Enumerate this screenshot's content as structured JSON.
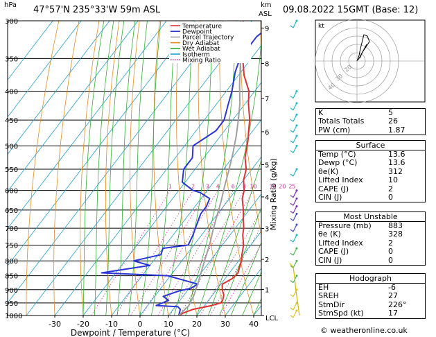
{
  "header": {
    "hpa_label": "hPa",
    "location": "47°57'N  235°33'W  59m  ASL",
    "km_label": "km",
    "asl_label": "ASL",
    "date": "09.08.2022  15GMT  (Base: 12)"
  },
  "footer": {
    "credit": "© weatheronline.co.uk"
  },
  "hodograph": {
    "label": "kt",
    "ring_labels": [
      "40",
      "30",
      "20"
    ]
  },
  "table": {
    "top": [
      {
        "label": "K",
        "value": "5"
      },
      {
        "label": "Totals Totals",
        "value": "26"
      },
      {
        "label": "PW (cm)",
        "value": "1.87"
      }
    ],
    "surface": {
      "title": "Surface",
      "rows": [
        {
          "label": "Temp (°C)",
          "value": "13.6"
        },
        {
          "label": "Dewp (°C)",
          "value": "13.6"
        },
        {
          "label": "θe(K)",
          "value": "312"
        },
        {
          "label": "Lifted Index",
          "value": "10"
        },
        {
          "label": "CAPE (J)",
          "value": "2"
        },
        {
          "label": "CIN (J)",
          "value": "0"
        }
      ]
    },
    "most_unstable": {
      "title": "Most Unstable",
      "rows": [
        {
          "label": "Pressure (mb)",
          "value": "883"
        },
        {
          "label": "θe (K)",
          "value": "328"
        },
        {
          "label": "Lifted Index",
          "value": "2"
        },
        {
          "label": "CAPE (J)",
          "value": "0"
        },
        {
          "label": "CIN (J)",
          "value": "0"
        }
      ]
    },
    "hodograph": {
      "title": "Hodograph",
      "rows": [
        {
          "label": "EH",
          "value": "-6"
        },
        {
          "label": "SREH",
          "value": "27"
        },
        {
          "label": "StmDir",
          "value": "226°"
        },
        {
          "label": "StmSpd (kt)",
          "value": "17"
        }
      ]
    }
  },
  "chart_data": {
    "type": "line",
    "subtype": "skew-T log-P sounding",
    "xlabel": "Dewpoint / Temperature (°C)",
    "ylabel_left": "hPa",
    "ylabel_right": "Mixing Ratio (g/kg)",
    "x_ticks": [
      "-30",
      "-20",
      "-10",
      "0",
      "10",
      "20",
      "30",
      "40"
    ],
    "x_values": [
      -30,
      -20,
      -10,
      0,
      10,
      20,
      30,
      40
    ],
    "p_ticks": [
      300,
      350,
      400,
      450,
      500,
      550,
      600,
      650,
      700,
      750,
      800,
      850,
      900,
      950,
      1000
    ],
    "p_labels": [
      "300",
      "350",
      "400",
      "450",
      "500",
      "550",
      "600",
      "650",
      "700",
      "750",
      "800",
      "850",
      "900",
      "950",
      "1000"
    ],
    "km_ticks": [
      {
        "km": "9",
        "p": 309
      },
      {
        "km": "8",
        "p": 357
      },
      {
        "km": "7",
        "p": 412
      },
      {
        "km": "6",
        "p": 472
      },
      {
        "km": "5",
        "p": 540
      },
      {
        "km": "4",
        "p": 616
      },
      {
        "km": "3",
        "p": 701
      },
      {
        "km": "2",
        "p": 795
      },
      {
        "km": "1",
        "p": 899
      }
    ],
    "lcl_label": "LCL",
    "mixing_ratio_labels": [
      "1",
      "2",
      "3",
      "4",
      "6",
      "8",
      "10",
      "16",
      "20",
      "25"
    ],
    "mixing_ratio_values": [
      1,
      2,
      3,
      4,
      6,
      8,
      10,
      16,
      20,
      25
    ],
    "legend": [
      {
        "name": "Temperature",
        "color": "#e03030"
      },
      {
        "name": "Dewpoint",
        "color": "#2a35d8"
      },
      {
        "name": "Parcel Trajectory",
        "color": "#a0a0a0"
      },
      {
        "name": "Dry Adiabat",
        "color": "#e88a1a"
      },
      {
        "name": "Wet Adiabat",
        "color": "#2bb32b"
      },
      {
        "name": "Isotherm",
        "color": "#1fa0d0"
      },
      {
        "name": "Mixing Ratio",
        "color": "#d0309a"
      }
    ],
    "series": [
      {
        "name": "Temperature",
        "points": [
          [
            13.6,
            1000
          ],
          [
            14.5,
            990
          ],
          [
            17,
            975
          ],
          [
            22.5,
            960
          ],
          [
            25,
            950
          ],
          [
            25,
            940
          ],
          [
            24,
            920
          ],
          [
            22,
            900
          ],
          [
            20.5,
            880
          ],
          [
            22.5,
            860
          ],
          [
            23,
            840
          ],
          [
            22,
            820
          ],
          [
            21,
            800
          ],
          [
            19.5,
            780
          ],
          [
            17.5,
            750
          ],
          [
            14.5,
            720
          ],
          [
            13,
            700
          ],
          [
            10,
            670
          ],
          [
            8,
            650
          ],
          [
            4.5,
            620
          ],
          [
            3,
            600
          ],
          [
            0,
            575
          ],
          [
            -2,
            550
          ],
          [
            -5.5,
            525
          ],
          [
            -8,
            500
          ],
          [
            -9,
            490
          ],
          [
            -11.5,
            470
          ],
          [
            -14,
            450
          ],
          [
            -19,
            420
          ],
          [
            -22,
            400
          ],
          [
            -28,
            375
          ],
          [
            -33,
            350
          ],
          [
            -37,
            330
          ],
          [
            -41,
            310
          ],
          [
            -43,
            300
          ]
        ]
      },
      {
        "name": "Dewpoint",
        "points": [
          [
            13.6,
            1000
          ],
          [
            13.2,
            990
          ],
          [
            12.5,
            975
          ],
          [
            11,
            965
          ],
          [
            3,
            960
          ],
          [
            6,
            940
          ],
          [
            3,
            925
          ],
          [
            7,
            905
          ],
          [
            10.5,
            895
          ],
          [
            12,
            880
          ],
          [
            -1,
            850
          ],
          [
            -25,
            840
          ],
          [
            -10,
            815
          ],
          [
            -17,
            800
          ],
          [
            -9,
            780
          ],
          [
            -10,
            760
          ],
          [
            -2,
            750
          ],
          [
            -3,
            720
          ],
          [
            -4,
            700
          ],
          [
            -5,
            680
          ],
          [
            -6,
            660
          ],
          [
            -6,
            640
          ],
          [
            -7,
            620
          ],
          [
            -12,
            605
          ],
          [
            -15,
            600
          ],
          [
            -21,
            580
          ],
          [
            -24,
            550
          ],
          [
            -24,
            525
          ],
          [
            -27,
            500
          ],
          [
            -23,
            470
          ],
          [
            -23,
            450
          ],
          [
            -26,
            420
          ],
          [
            -28,
            400
          ],
          [
            -32,
            370
          ],
          [
            -34,
            350
          ],
          [
            -34,
            320
          ],
          [
            -31,
            300
          ]
        ]
      },
      {
        "name": "Parcel Trajectory",
        "points": [
          [
            13.6,
            1000
          ],
          [
            14.5,
            960
          ],
          [
            13.5,
            920
          ],
          [
            12,
            883
          ],
          [
            10.5,
            850
          ],
          [
            9,
            820
          ],
          [
            7.5,
            790
          ],
          [
            5.5,
            750
          ],
          [
            3,
            710
          ],
          [
            0.5,
            670
          ],
          [
            -2,
            630
          ],
          [
            -5,
            590
          ],
          [
            -8,
            550
          ],
          [
            -11,
            515
          ],
          [
            -14.5,
            480
          ],
          [
            -18,
            450
          ],
          [
            -22,
            420
          ],
          [
            -27,
            390
          ],
          [
            -32,
            360
          ],
          [
            -38,
            330
          ],
          [
            -44,
            300
          ]
        ]
      }
    ]
  }
}
